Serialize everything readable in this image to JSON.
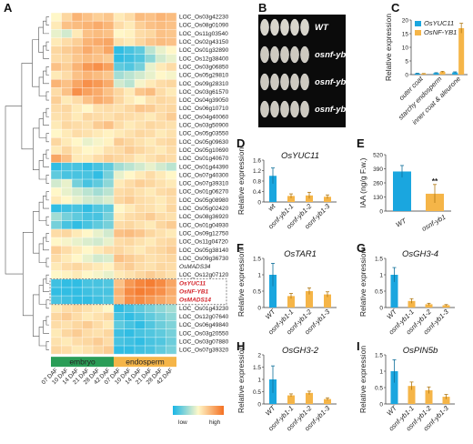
{
  "panels": {
    "A": "A",
    "B": "B",
    "C": "C",
    "D": "D",
    "E": "E",
    "F": "F",
    "G": "G",
    "H": "H",
    "I": "I"
  },
  "colors": {
    "bar_blue": "#1aa6df",
    "bar_orange": "#f5b548",
    "significance": "#e3262c",
    "tissue_green": "#2a9d57",
    "tissue_orange": "#f5b548"
  },
  "heatmap": {
    "genes": [
      "LOC_Os03g42230",
      "LOC_Os08g01090",
      "LOC_Os11g03540",
      "LOC_Os02g43150",
      "LOC_Os01g32890",
      "LOC_Os12g38400",
      "LOC_Os03g06850",
      "LOC_Os05g29810",
      "LOC_Os09g28310",
      "LOC_Os03g61570",
      "LOC_Os04g39050",
      "LOC_Os06g10710",
      "LOC_Os04g40060",
      "LOC_Os03g50900",
      "LOC_Os05g03550",
      "LOC_Os05g09630",
      "LOC_Os05g10690",
      "LOC_Os01g40670",
      "LOC_Os01g44390",
      "LOC_Os07g40300",
      "LOC_Os07g39310",
      "LOC_Os01g06270",
      "LOC_Os05g08980",
      "LOC_Os05g02420",
      "LOC_Os08g36920",
      "LOC_Os01g04930",
      "LOC_Os09g12750",
      "LOC_Os11g04720",
      "LOC_Os05g38140",
      "LOC_Os09g36730",
      "OsMADS34",
      "LOC_Os12g07120",
      "OsYUC11",
      "OsNF-YB1",
      "OsMADS14",
      "LOC_Os01g43230",
      "LOC_Os12g07640",
      "LOC_Os06g49840",
      "LOC_Os03g20550",
      "LOC_Os03g07880",
      "LOC_Os07g39320"
    ],
    "highlight_genes": [
      "OsYUC11",
      "OsNF-YB1",
      "OsMADS14"
    ],
    "columns": [
      "07 DAF",
      "10 DAF",
      "14 DAF",
      "21 DAF",
      "28 DAF",
      "42 DAF",
      "07 DAF",
      "10 DAF",
      "14 DAF",
      "21 DAF",
      "28 DAF",
      "42 DAF"
    ],
    "tissue_groups": [
      {
        "label": "embryo",
        "span": 6
      },
      {
        "label": "endosperm",
        "span": 6
      }
    ],
    "legend": {
      "low": "low",
      "high": "high"
    },
    "values": [
      [
        0.5,
        0.62,
        0.75,
        0.7,
        0.65,
        0.68,
        0.55,
        0.6,
        0.72,
        0.7,
        0.75,
        0.72
      ],
      [
        0.55,
        0.7,
        0.72,
        0.75,
        0.78,
        0.74,
        0.6,
        0.55,
        0.65,
        0.7,
        0.72,
        0.7
      ],
      [
        0.45,
        0.4,
        0.55,
        0.7,
        0.72,
        0.7,
        0.5,
        0.52,
        0.6,
        0.62,
        0.7,
        0.68
      ],
      [
        0.55,
        0.6,
        0.65,
        0.75,
        0.78,
        0.8,
        0.58,
        0.55,
        0.62,
        0.68,
        0.72,
        0.7
      ],
      [
        0.62,
        0.66,
        0.7,
        0.78,
        0.72,
        0.8,
        0.05,
        0.1,
        0.15,
        0.35,
        0.45,
        0.5
      ],
      [
        0.6,
        0.62,
        0.68,
        0.72,
        0.7,
        0.66,
        0.05,
        0.08,
        0.12,
        0.25,
        0.4,
        0.45
      ],
      [
        0.7,
        0.65,
        0.75,
        0.85,
        0.88,
        0.82,
        0.15,
        0.12,
        0.2,
        0.45,
        0.55,
        0.6
      ],
      [
        0.55,
        0.6,
        0.7,
        0.75,
        0.72,
        0.68,
        0.3,
        0.35,
        0.4,
        0.45,
        0.5,
        0.48
      ],
      [
        0.75,
        0.7,
        0.8,
        0.88,
        0.85,
        0.78,
        0.4,
        0.35,
        0.48,
        0.55,
        0.6,
        0.62
      ],
      [
        0.6,
        0.7,
        0.88,
        0.82,
        0.78,
        0.7,
        0.62,
        0.55,
        0.68,
        0.72,
        0.6,
        0.55
      ],
      [
        0.65,
        0.55,
        0.6,
        0.7,
        0.78,
        0.74,
        0.62,
        0.55,
        0.5,
        0.58,
        0.62,
        0.6
      ],
      [
        0.6,
        0.62,
        0.55,
        0.5,
        0.58,
        0.6,
        0.58,
        0.62,
        0.68,
        0.66,
        0.6,
        0.62
      ],
      [
        0.58,
        0.6,
        0.55,
        0.62,
        0.6,
        0.58,
        0.62,
        0.6,
        0.58,
        0.55,
        0.6,
        0.66
      ],
      [
        0.55,
        0.62,
        0.6,
        0.58,
        0.66,
        0.7,
        0.6,
        0.55,
        0.58,
        0.62,
        0.6,
        0.58
      ],
      [
        0.5,
        0.55,
        0.6,
        0.58,
        0.55,
        0.52,
        0.55,
        0.58,
        0.62,
        0.6,
        0.55,
        0.58
      ],
      [
        0.62,
        0.55,
        0.5,
        0.45,
        0.48,
        0.52,
        0.66,
        0.62,
        0.58,
        0.55,
        0.6,
        0.62
      ],
      [
        0.55,
        0.62,
        0.55,
        0.5,
        0.52,
        0.58,
        0.6,
        0.66,
        0.62,
        0.58,
        0.55,
        0.6
      ],
      [
        0.8,
        0.7,
        0.55,
        0.55,
        0.6,
        0.65,
        0.62,
        0.6,
        0.55,
        0.58,
        0.62,
        0.6
      ],
      [
        0.05,
        0.1,
        0.1,
        0.05,
        0.1,
        0.15,
        0.3,
        0.35,
        0.4,
        0.45,
        0.4,
        0.35
      ],
      [
        0.15,
        0.1,
        0.1,
        0.1,
        0.05,
        0.2,
        0.45,
        0.5,
        0.55,
        0.6,
        0.55,
        0.5
      ],
      [
        0.4,
        0.45,
        0.2,
        0.1,
        0.15,
        0.25,
        0.55,
        0.6,
        0.65,
        0.62,
        0.58,
        0.55
      ],
      [
        0.5,
        0.45,
        0.4,
        0.35,
        0.3,
        0.35,
        0.6,
        0.62,
        0.58,
        0.55,
        0.6,
        0.62
      ],
      [
        0.55,
        0.5,
        0.45,
        0.4,
        0.38,
        0.42,
        0.62,
        0.66,
        0.6,
        0.58,
        0.55,
        0.6
      ],
      [
        0.05,
        0.08,
        0.1,
        0.05,
        0.12,
        0.15,
        0.5,
        0.55,
        0.6,
        0.58,
        0.55,
        0.62
      ],
      [
        0.3,
        0.2,
        0.15,
        0.1,
        0.1,
        0.2,
        0.55,
        0.6,
        0.62,
        0.66,
        0.6,
        0.58
      ],
      [
        0.2,
        0.1,
        0.05,
        0.1,
        0.15,
        0.2,
        0.6,
        0.62,
        0.58,
        0.55,
        0.62,
        0.66
      ],
      [
        0.6,
        0.62,
        0.55,
        0.5,
        0.45,
        0.4,
        0.7,
        0.72,
        0.68,
        0.62,
        0.58,
        0.55
      ],
      [
        0.5,
        0.48,
        0.45,
        0.42,
        0.4,
        0.45,
        0.6,
        0.62,
        0.58,
        0.55,
        0.6,
        0.62
      ],
      [
        0.65,
        0.6,
        0.55,
        0.5,
        0.55,
        0.6,
        0.62,
        0.58,
        0.55,
        0.6,
        0.62,
        0.66
      ],
      [
        0.6,
        0.55,
        0.5,
        0.45,
        0.4,
        0.42,
        0.7,
        0.66,
        0.62,
        0.58,
        0.6,
        0.62
      ],
      [
        0.55,
        0.6,
        0.62,
        0.58,
        0.55,
        0.52,
        0.62,
        0.66,
        0.6,
        0.58,
        0.62,
        0.6
      ],
      [
        0.5,
        0.52,
        0.55,
        0.5,
        0.48,
        0.45,
        0.55,
        0.58,
        0.62,
        0.66,
        0.62,
        0.58
      ],
      [
        0.08,
        0.05,
        0.05,
        0.1,
        0.1,
        0.12,
        0.7,
        0.85,
        0.92,
        0.95,
        0.9,
        0.8
      ],
      [
        0.05,
        0.05,
        0.05,
        0.08,
        0.1,
        0.1,
        0.75,
        0.9,
        0.95,
        0.92,
        0.88,
        0.78
      ],
      [
        0.1,
        0.08,
        0.05,
        0.05,
        0.08,
        0.12,
        0.72,
        0.88,
        0.9,
        0.85,
        0.8,
        0.75
      ],
      [
        0.55,
        0.6,
        0.62,
        0.58,
        0.55,
        0.5,
        0.05,
        0.1,
        0.15,
        0.2,
        0.25,
        0.3
      ],
      [
        0.62,
        0.66,
        0.6,
        0.55,
        0.58,
        0.62,
        0.1,
        0.05,
        0.1,
        0.15,
        0.2,
        0.25
      ],
      [
        0.6,
        0.58,
        0.62,
        0.66,
        0.6,
        0.55,
        0.15,
        0.1,
        0.05,
        0.12,
        0.18,
        0.22
      ],
      [
        0.55,
        0.62,
        0.66,
        0.6,
        0.58,
        0.62,
        0.08,
        0.05,
        0.1,
        0.12,
        0.15,
        0.2
      ],
      [
        0.58,
        0.55,
        0.6,
        0.62,
        0.66,
        0.6,
        0.1,
        0.08,
        0.05,
        0.1,
        0.12,
        0.18
      ],
      [
        0.62,
        0.6,
        0.55,
        0.58,
        0.62,
        0.66,
        0.05,
        0.05,
        0.08,
        0.1,
        0.15,
        0.2
      ]
    ]
  },
  "seeds": {
    "labels": [
      "WT",
      "osnf-yb1-1",
      "osnf-yb1-2",
      "osnf-yb1-3"
    ]
  },
  "chart_data": [
    {
      "panel": "C",
      "type": "bar",
      "categories": [
        "outer coat",
        "starchy endosperm",
        "inner coat & aleurone"
      ],
      "series": [
        {
          "name": "OsYUC11",
          "values": [
            0.4,
            0.6,
            0.8
          ],
          "errors": [
            0.1,
            0.1,
            0.2
          ]
        },
        {
          "name": "OsNF-YB1",
          "values": [
            0.3,
            1.0,
            17.0
          ],
          "errors": [
            0.1,
            0.2,
            1.8
          ]
        }
      ],
      "ylabel": "Relative expression",
      "ylim": [
        0,
        20
      ],
      "yticks": [
        0,
        5,
        10,
        15,
        20
      ]
    },
    {
      "panel": "D",
      "type": "bar",
      "title": "OsYUC11",
      "categories": [
        "wt",
        "osnf-yb1-1",
        "osnf-yb1-2",
        "osnf-yb1-3"
      ],
      "values": [
        1.0,
        0.23,
        0.25,
        0.2
      ],
      "errors": [
        0.3,
        0.08,
        0.12,
        0.07
      ],
      "ylabel": "Relative expression",
      "ylim": [
        0,
        1.6
      ],
      "yticks": [
        0,
        0.4,
        0.8,
        1.2,
        1.6
      ]
    },
    {
      "panel": "E",
      "type": "bar",
      "categories": [
        "WT",
        "osnf-yb1"
      ],
      "values": [
        365,
        160
      ],
      "errors": [
        55,
        85
      ],
      "significance": [
        "",
        "**"
      ],
      "ylabel": "IAA (ng/g F.w.)",
      "ylim": [
        0,
        520
      ],
      "yticks": [
        0,
        130,
        260,
        390,
        520
      ]
    },
    {
      "panel": "F",
      "type": "bar",
      "title": "OsTAR1",
      "categories": [
        "WT",
        "osnf-yb1-1",
        "osnf-yb1-2",
        "osnf-yb1-3"
      ],
      "values": [
        1.0,
        0.35,
        0.5,
        0.4
      ],
      "errors": [
        0.35,
        0.08,
        0.1,
        0.08
      ],
      "ylabel": "Relative expression",
      "ylim": [
        0,
        1.5
      ],
      "yticks": [
        0,
        0.5,
        1,
        1.5
      ]
    },
    {
      "panel": "G",
      "type": "bar",
      "title": "OsGH3-4",
      "categories": [
        "WT",
        "osnf-yb1-1",
        "osnf-yb1-2",
        "osnf-yb1-3"
      ],
      "values": [
        1.0,
        0.2,
        0.1,
        0.07
      ],
      "errors": [
        0.22,
        0.07,
        0.03,
        0.02
      ],
      "ylabel": "Relative expression",
      "ylim": [
        0,
        1.5
      ],
      "yticks": [
        0,
        0.5,
        1,
        1.5
      ]
    },
    {
      "panel": "H",
      "type": "bar",
      "title": "OsGH3-2",
      "categories": [
        "WT",
        "osnf-yb1-1",
        "osnf-yb1-2",
        "osnf-yb1-3"
      ],
      "values": [
        1.0,
        0.35,
        0.45,
        0.2
      ],
      "errors": [
        0.55,
        0.06,
        0.07,
        0.05
      ],
      "ylabel": "Relative expression",
      "ylim": [
        0,
        2
      ],
      "yticks": [
        0,
        0.5,
        1,
        1.5,
        2
      ]
    },
    {
      "panel": "I",
      "type": "bar",
      "title": "OsPIN5b",
      "categories": [
        "WT",
        "osnf-yb1-1",
        "osnf-yb1-2",
        "osnf-yb1-3"
      ],
      "values": [
        1.0,
        0.55,
        0.42,
        0.22
      ],
      "errors": [
        0.35,
        0.12,
        0.1,
        0.07
      ],
      "ylabel": "Relative expression",
      "ylim": [
        0,
        1.5
      ],
      "yticks": [
        0,
        0.5,
        1,
        1.5
      ]
    }
  ]
}
